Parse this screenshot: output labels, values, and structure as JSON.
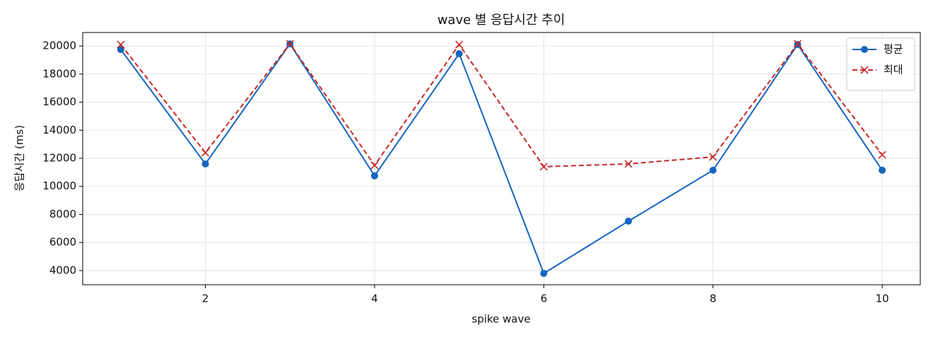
{
  "chart_data": {
    "type": "line",
    "title": "wave 별 응답시간 추이",
    "x_label": "spike wave",
    "y_label": "응답시간 (ms)",
    "x": [
      1,
      2,
      3,
      4,
      5,
      6,
      7,
      8,
      9,
      10
    ],
    "series": [
      {
        "name": "평균",
        "color": "#1565c0",
        "marker": "o",
        "linestyle": "solid",
        "values": [
          19750,
          11600,
          20150,
          10750,
          19450,
          3800,
          7520,
          11150,
          20100,
          11150
        ]
      },
      {
        "name": "최대",
        "color": "#c62828",
        "marker": "x",
        "linestyle": "dashed",
        "values": [
          20100,
          12400,
          20150,
          11500,
          20100,
          11400,
          11600,
          12100,
          20150,
          12250
        ]
      }
    ],
    "xlim": [
      0.55,
      10.45
    ],
    "xticks": [
      2,
      4,
      6,
      8,
      10
    ],
    "ylim": [
      2990,
      20960
    ],
    "yticks": [
      4000,
      6000,
      8000,
      10000,
      12000,
      14000,
      16000,
      18000,
      20000
    ],
    "grid": true,
    "legend": "upper right"
  }
}
